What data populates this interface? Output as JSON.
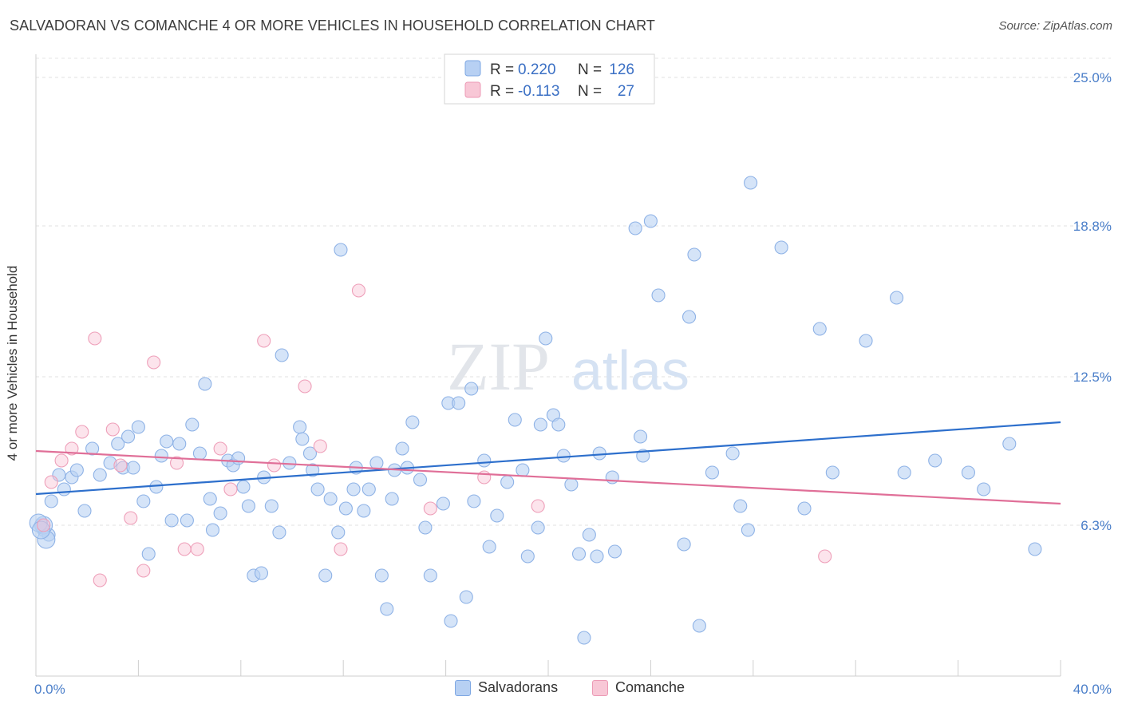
{
  "title": "SALVADORAN VS COMANCHE 4 OR MORE VEHICLES IN HOUSEHOLD CORRELATION CHART",
  "source": "Source: ZipAtlas.com",
  "watermark": {
    "zip": "ZIP",
    "atlas": "atlas"
  },
  "legend": {
    "r_label": "R =",
    "n_label": "N =",
    "entries": [
      {
        "r": "0.220",
        "n": "126"
      },
      {
        "r": "-0.113",
        "n": "27"
      }
    ]
  },
  "bottom_legend": [
    "Salvadorans",
    "Comanche"
  ],
  "chart_data": {
    "type": "scatter",
    "title": "SALVADORAN VS COMANCHE 4 OR MORE VEHICLES IN HOUSEHOLD CORRELATION CHART",
    "xlabel": "",
    "ylabel": "4 or more Vehicles in Household",
    "xlim": [
      0,
      40
    ],
    "ylim": [
      0,
      25.8
    ],
    "x_tick_labels": [
      "0.0%",
      "40.0%"
    ],
    "y_ticks": [
      6.3,
      12.5,
      18.8,
      25.0
    ],
    "y_tick_labels": [
      "6.3%",
      "12.5%",
      "18.8%",
      "25.0%"
    ],
    "grid": true,
    "legend_position": "top-center",
    "colors": {
      "salvadorans": "#a9c8f2",
      "salvadorans_line": "#2d6fcc",
      "comanche": "#f6b8cc",
      "comanche_line": "#e06f98"
    },
    "series": [
      {
        "name": "Salvadorans",
        "r": 0.22,
        "n": 126,
        "trend": {
          "x": [
            0,
            40
          ],
          "y": [
            7.6,
            10.6
          ]
        },
        "points": [
          [
            0.2,
            6.3
          ],
          [
            0.3,
            6.1
          ],
          [
            0.5,
            5.9
          ],
          [
            0.6,
            7.3
          ],
          [
            0.9,
            8.4
          ],
          [
            1.1,
            7.8
          ],
          [
            1.4,
            8.3
          ],
          [
            1.6,
            8.6
          ],
          [
            1.9,
            6.9
          ],
          [
            2.2,
            9.5
          ],
          [
            2.5,
            8.4
          ],
          [
            2.9,
            8.9
          ],
          [
            3.2,
            9.7
          ],
          [
            3.4,
            8.7
          ],
          [
            3.6,
            10.0
          ],
          [
            3.8,
            8.7
          ],
          [
            4.0,
            10.4
          ],
          [
            4.2,
            7.3
          ],
          [
            4.4,
            5.1
          ],
          [
            4.7,
            7.9
          ],
          [
            4.9,
            9.2
          ],
          [
            5.1,
            9.8
          ],
          [
            5.3,
            6.5
          ],
          [
            5.6,
            9.7
          ],
          [
            5.9,
            6.5
          ],
          [
            6.1,
            10.5
          ],
          [
            6.4,
            9.3
          ],
          [
            6.6,
            12.2
          ],
          [
            6.8,
            7.4
          ],
          [
            6.9,
            6.1
          ],
          [
            7.2,
            6.8
          ],
          [
            7.5,
            9.0
          ],
          [
            7.7,
            8.8
          ],
          [
            7.9,
            9.1
          ],
          [
            8.1,
            7.9
          ],
          [
            8.3,
            7.1
          ],
          [
            8.5,
            4.2
          ],
          [
            8.8,
            4.3
          ],
          [
            8.9,
            8.3
          ],
          [
            9.2,
            7.1
          ],
          [
            9.5,
            6.0
          ],
          [
            9.6,
            13.4
          ],
          [
            9.9,
            8.9
          ],
          [
            10.3,
            10.4
          ],
          [
            10.4,
            9.9
          ],
          [
            10.7,
            9.3
          ],
          [
            10.8,
            8.6
          ],
          [
            11.0,
            7.8
          ],
          [
            11.3,
            4.2
          ],
          [
            11.5,
            7.4
          ],
          [
            11.8,
            6.0
          ],
          [
            11.9,
            17.8
          ],
          [
            12.1,
            7.0
          ],
          [
            12.4,
            7.8
          ],
          [
            12.5,
            8.7
          ],
          [
            12.8,
            6.9
          ],
          [
            13.0,
            7.8
          ],
          [
            13.3,
            8.9
          ],
          [
            13.5,
            4.2
          ],
          [
            13.7,
            2.8
          ],
          [
            13.9,
            7.4
          ],
          [
            14.0,
            8.6
          ],
          [
            14.3,
            9.5
          ],
          [
            14.5,
            8.7
          ],
          [
            14.7,
            10.6
          ],
          [
            15.0,
            8.2
          ],
          [
            15.2,
            6.2
          ],
          [
            15.4,
            4.2
          ],
          [
            15.9,
            7.2
          ],
          [
            16.1,
            11.4
          ],
          [
            16.2,
            2.3
          ],
          [
            16.5,
            11.4
          ],
          [
            16.8,
            3.3
          ],
          [
            17.0,
            12.0
          ],
          [
            17.1,
            7.3
          ],
          [
            17.5,
            9.0
          ],
          [
            17.7,
            5.4
          ],
          [
            18.0,
            6.7
          ],
          [
            18.4,
            8.1
          ],
          [
            18.7,
            10.7
          ],
          [
            19.0,
            8.6
          ],
          [
            19.2,
            5.0
          ],
          [
            19.6,
            6.2
          ],
          [
            19.7,
            10.5
          ],
          [
            19.9,
            14.1
          ],
          [
            20.2,
            10.9
          ],
          [
            20.4,
            10.5
          ],
          [
            20.6,
            9.2
          ],
          [
            20.9,
            8.0
          ],
          [
            21.2,
            5.1
          ],
          [
            21.4,
            1.6
          ],
          [
            21.6,
            5.9
          ],
          [
            21.9,
            5.0
          ],
          [
            22.0,
            9.3
          ],
          [
            22.5,
            8.3
          ],
          [
            22.6,
            5.2
          ],
          [
            23.4,
            18.7
          ],
          [
            23.6,
            10.0
          ],
          [
            23.7,
            9.2
          ],
          [
            24.0,
            19.0
          ],
          [
            24.3,
            15.9
          ],
          [
            25.3,
            5.5
          ],
          [
            25.5,
            15.0
          ],
          [
            25.7,
            17.6
          ],
          [
            25.9,
            2.1
          ],
          [
            26.4,
            8.5
          ],
          [
            27.2,
            9.3
          ],
          [
            27.5,
            7.1
          ],
          [
            27.8,
            6.1
          ],
          [
            27.9,
            20.6
          ],
          [
            29.1,
            17.9
          ],
          [
            30.0,
            7.0
          ],
          [
            30.6,
            14.5
          ],
          [
            31.1,
            8.5
          ],
          [
            32.4,
            14.0
          ],
          [
            33.6,
            15.8
          ],
          [
            33.9,
            8.5
          ],
          [
            35.1,
            9.0
          ],
          [
            36.4,
            8.5
          ],
          [
            37.0,
            7.8
          ],
          [
            38.0,
            9.7
          ],
          [
            39.0,
            5.3
          ],
          [
            0.3,
            6.3
          ],
          [
            0.1,
            6.4
          ],
          [
            0.4,
            5.7
          ],
          [
            0.2,
            6.1
          ]
        ]
      },
      {
        "name": "Comanche",
        "r": -0.113,
        "n": 27,
        "trend": {
          "x": [
            0,
            40
          ],
          "y": [
            9.4,
            7.2
          ]
        },
        "points": [
          [
            0.3,
            6.3
          ],
          [
            0.6,
            8.1
          ],
          [
            1.0,
            9.0
          ],
          [
            1.4,
            9.5
          ],
          [
            1.8,
            10.2
          ],
          [
            2.3,
            14.1
          ],
          [
            2.5,
            4.0
          ],
          [
            3.0,
            10.3
          ],
          [
            3.3,
            8.8
          ],
          [
            3.7,
            6.6
          ],
          [
            4.2,
            4.4
          ],
          [
            4.6,
            13.1
          ],
          [
            5.5,
            8.9
          ],
          [
            5.8,
            5.3
          ],
          [
            6.3,
            5.3
          ],
          [
            7.2,
            9.5
          ],
          [
            7.6,
            7.8
          ],
          [
            8.9,
            14.0
          ],
          [
            9.3,
            8.8
          ],
          [
            10.5,
            12.1
          ],
          [
            11.1,
            9.6
          ],
          [
            11.9,
            5.3
          ],
          [
            12.6,
            16.1
          ],
          [
            15.4,
            7.0
          ],
          [
            17.5,
            8.3
          ],
          [
            19.6,
            7.1
          ],
          [
            30.8,
            5.0
          ]
        ]
      }
    ]
  }
}
